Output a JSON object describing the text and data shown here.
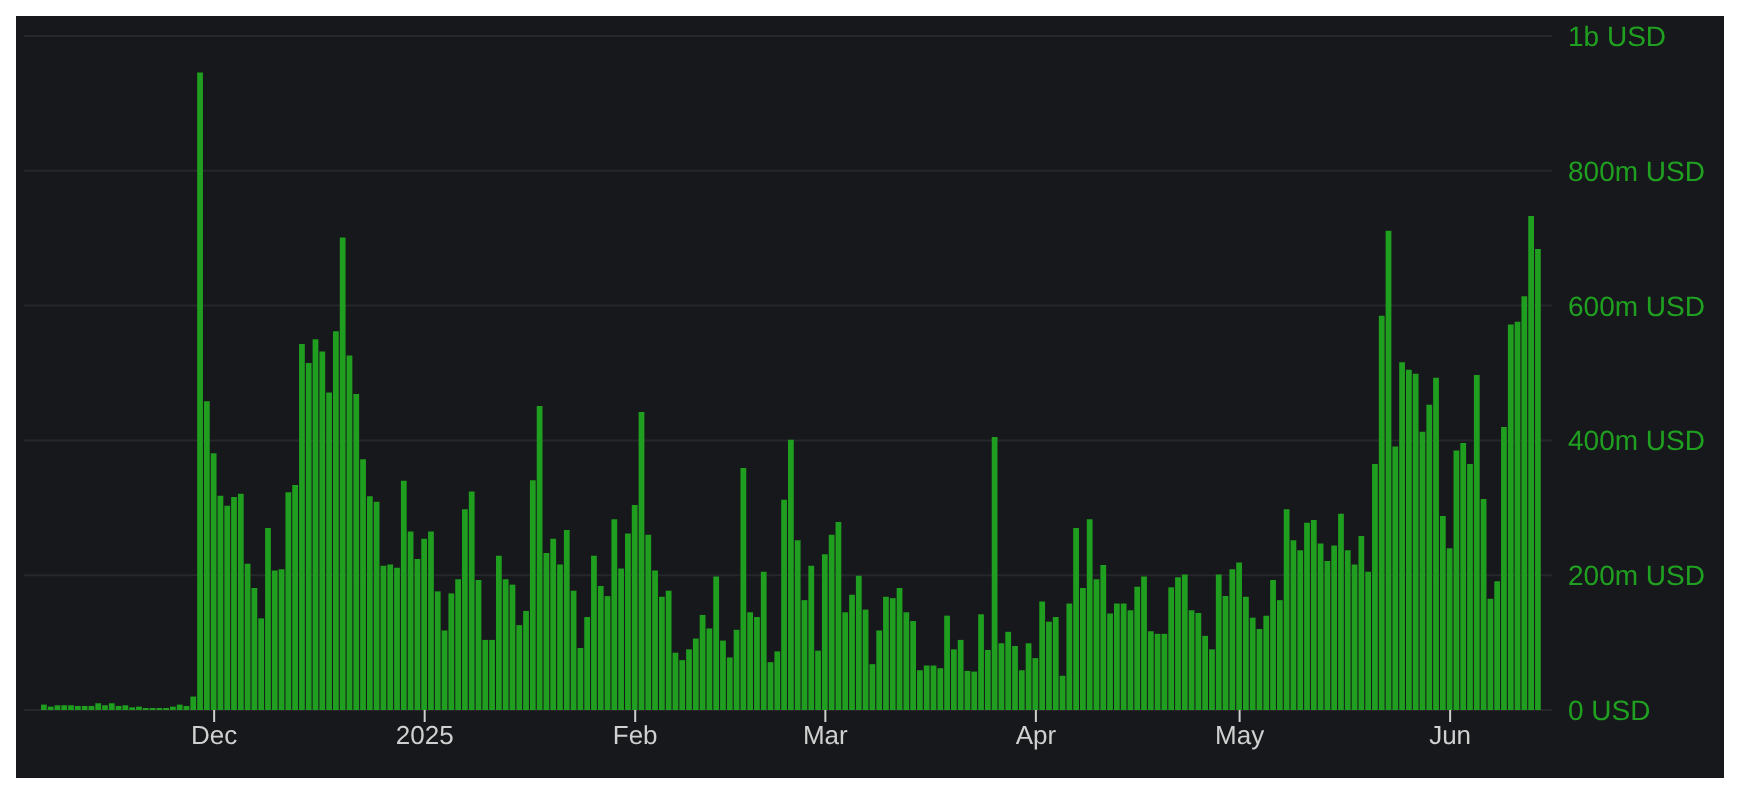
{
  "chart_data": {
    "type": "bar",
    "color": "#1f9e1f",
    "grid": "y",
    "x": [
      "2024-11-06",
      "2024-11-07",
      "2024-11-08",
      "2024-11-09",
      "2024-11-10",
      "2024-11-11",
      "2024-11-12",
      "2024-11-13",
      "2024-11-14",
      "2024-11-15",
      "2024-11-16",
      "2024-11-17",
      "2024-11-18",
      "2024-11-19",
      "2024-11-20",
      "2024-11-21",
      "2024-11-22",
      "2024-11-23",
      "2024-11-24",
      "2024-11-25",
      "2024-11-26",
      "2024-11-27",
      "2024-11-28",
      "2024-11-29",
      "2024-11-30",
      "2024-12-01",
      "2024-12-02",
      "2024-12-03",
      "2024-12-04",
      "2024-12-05",
      "2024-12-06",
      "2024-12-07",
      "2024-12-08",
      "2024-12-09",
      "2024-12-10",
      "2024-12-11",
      "2024-12-12",
      "2024-12-13",
      "2024-12-14",
      "2024-12-15",
      "2024-12-16",
      "2024-12-17",
      "2024-12-18",
      "2024-12-19",
      "2024-12-20",
      "2024-12-21",
      "2024-12-22",
      "2024-12-23",
      "2024-12-24",
      "2024-12-25",
      "2024-12-26",
      "2024-12-27",
      "2024-12-28",
      "2024-12-29",
      "2024-12-30",
      "2024-12-31",
      "2025-01-01",
      "2025-01-02",
      "2025-01-03",
      "2025-01-04",
      "2025-01-05",
      "2025-01-06",
      "2025-01-07",
      "2025-01-08",
      "2025-01-09",
      "2025-01-10",
      "2025-01-11",
      "2025-01-12",
      "2025-01-13",
      "2025-01-14",
      "2025-01-15",
      "2025-01-16",
      "2025-01-17",
      "2025-01-18",
      "2025-01-19",
      "2025-01-20",
      "2025-01-21",
      "2025-01-22",
      "2025-01-23",
      "2025-01-24",
      "2025-01-25",
      "2025-01-26",
      "2025-01-27",
      "2025-01-28",
      "2025-01-29",
      "2025-01-30",
      "2025-01-31",
      "2025-02-01",
      "2025-02-02",
      "2025-02-03",
      "2025-02-04",
      "2025-02-05",
      "2025-02-06",
      "2025-02-07",
      "2025-02-08",
      "2025-02-09",
      "2025-02-10",
      "2025-02-11",
      "2025-02-12",
      "2025-02-13",
      "2025-02-14",
      "2025-02-15",
      "2025-02-16",
      "2025-02-17",
      "2025-02-18",
      "2025-02-19",
      "2025-02-20",
      "2025-02-21",
      "2025-02-22",
      "2025-02-23",
      "2025-02-24",
      "2025-02-25",
      "2025-02-26",
      "2025-02-27",
      "2025-02-28",
      "2025-03-01",
      "2025-03-02",
      "2025-03-03",
      "2025-03-04",
      "2025-03-05",
      "2025-03-06",
      "2025-03-07",
      "2025-03-08",
      "2025-03-09",
      "2025-03-10",
      "2025-03-11",
      "2025-03-12",
      "2025-03-13",
      "2025-03-14",
      "2025-03-15",
      "2025-03-16",
      "2025-03-17",
      "2025-03-18",
      "2025-03-19",
      "2025-03-20",
      "2025-03-21",
      "2025-03-22",
      "2025-03-23",
      "2025-03-24",
      "2025-03-25",
      "2025-03-26",
      "2025-03-27",
      "2025-03-28",
      "2025-03-29",
      "2025-03-30",
      "2025-03-31",
      "2025-04-01",
      "2025-04-02",
      "2025-04-03",
      "2025-04-04",
      "2025-04-05",
      "2025-04-06",
      "2025-04-07",
      "2025-04-08",
      "2025-04-09",
      "2025-04-10",
      "2025-04-11",
      "2025-04-12",
      "2025-04-13",
      "2025-04-14",
      "2025-04-15",
      "2025-04-16",
      "2025-04-17",
      "2025-04-18",
      "2025-04-19",
      "2025-04-20",
      "2025-04-21",
      "2025-04-22",
      "2025-04-23",
      "2025-04-24",
      "2025-04-25",
      "2025-04-26",
      "2025-04-27",
      "2025-04-28",
      "2025-04-29",
      "2025-04-30",
      "2025-05-01",
      "2025-05-02",
      "2025-05-03",
      "2025-05-04",
      "2025-05-05",
      "2025-05-06",
      "2025-05-07",
      "2025-05-08",
      "2025-05-09",
      "2025-05-10",
      "2025-05-11",
      "2025-05-12",
      "2025-05-13",
      "2025-05-14",
      "2025-05-15",
      "2025-05-16",
      "2025-05-17",
      "2025-05-18",
      "2025-05-19",
      "2025-05-20",
      "2025-05-21",
      "2025-05-22",
      "2025-05-23",
      "2025-05-24",
      "2025-05-25",
      "2025-05-26",
      "2025-05-27",
      "2025-05-28",
      "2025-05-29",
      "2025-05-30",
      "2025-05-31",
      "2025-06-01",
      "2025-06-02",
      "2025-06-03",
      "2025-06-04",
      "2025-06-05",
      "2025-06-06",
      "2025-06-07",
      "2025-06-08",
      "2025-06-09",
      "2025-06-10",
      "2025-06-11",
      "2025-06-12",
      "2025-06-13",
      "2025-06-14"
    ],
    "values": [
      8000000.0,
      5000000.0,
      7000000.0,
      7000000.0,
      7000000.0,
      6000000.0,
      6000000.0,
      6000000.0,
      10000000.0,
      7000000.0,
      10000000.0,
      6000000.0,
      7000000.0,
      4000000.0,
      5000000.0,
      3000000.0,
      3000000.0,
      3000000.0,
      3000000.0,
      5000000.0,
      8000000.0,
      6000000.0,
      20000000.0,
      946000000.0,
      458000000.0,
      381000000.0,
      318000000.0,
      303000000.0,
      316000000.0,
      321000000.0,
      217000000.0,
      181000000.0,
      136000000.0,
      270000000.0,
      207000000.0,
      209000000.0,
      323000000.0,
      334000000.0,
      543000000.0,
      515000000.0,
      550000000.0,
      532000000.0,
      471000000.0,
      562000000.0,
      701000000.0,
      526000000.0,
      469000000.0,
      372000000.0,
      317000000.0,
      309000000.0,
      214000000.0,
      216000000.0,
      211000000.0,
      340000000.0,
      265000000.0,
      224000000.0,
      254000000.0,
      265000000.0,
      176000000.0,
      118000000.0,
      173000000.0,
      194000000.0,
      298000000.0,
      324000000.0,
      193000000.0,
      104000000.0,
      104000000.0,
      229000000.0,
      194000000.0,
      186000000.0,
      126000000.0,
      147000000.0,
      341000000.0,
      451000000.0,
      233000000.0,
      254000000.0,
      216000000.0,
      267000000.0,
      177000000.0,
      92000000.0,
      138000000.0,
      229000000.0,
      184000000.0,
      169000000.0,
      283000000.0,
      210000000.0,
      262000000.0,
      304000000.0,
      442000000.0,
      260000000.0,
      207000000.0,
      168000000.0,
      177000000.0,
      85000000.0,
      74000000.0,
      90000000.0,
      106000000.0,
      141000000.0,
      121000000.0,
      198000000.0,
      103000000.0,
      78000000.0,
      119000000.0,
      359000000.0,
      145000000.0,
      138000000.0,
      205000000.0,
      71000000.0,
      87000000.0,
      312000000.0,
      401000000.0,
      252000000.0,
      163000000.0,
      214000000.0,
      88000000.0,
      231000000.0,
      260000000.0,
      279000000.0,
      145000000.0,
      171000000.0,
      199000000.0,
      149000000.0,
      68000000.0,
      118000000.0,
      168000000.0,
      166000000.0,
      181000000.0,
      145000000.0,
      132000000.0,
      59000000.0,
      66000000.0,
      66000000.0,
      62000000.0,
      140000000.0,
      90000000.0,
      104000000.0,
      58000000.0,
      57000000.0,
      142000000.0,
      89000000.0,
      405000000.0,
      99000000.0,
      116000000.0,
      95000000.0,
      59000000.0,
      99000000.0,
      77000000.0,
      161000000.0,
      131000000.0,
      138000000.0,
      51000000.0,
      158000000.0,
      270000000.0,
      181000000.0,
      283000000.0,
      194000000.0,
      215000000.0,
      143000000.0,
      158000000.0,
      158000000.0,
      148000000.0,
      183000000.0,
      198000000.0,
      117000000.0,
      113000000.0,
      113000000.0,
      182000000.0,
      197000000.0,
      201000000.0,
      148000000.0,
      144000000.0,
      110000000.0,
      90000000.0,
      201000000.0,
      169000000.0,
      209000000.0,
      219000000.0,
      168000000.0,
      137000000.0,
      120000000.0,
      140000000.0,
      193000000.0,
      163000000.0,
      298000000.0,
      252000000.0,
      237000000.0,
      278000000.0,
      282000000.0,
      247000000.0,
      221000000.0,
      244000000.0,
      291000000.0,
      237000000.0,
      216000000.0,
      258000000.0,
      205000000.0,
      365000000.0,
      585000000.0,
      711000000.0,
      391000000.0,
      516000000.0,
      505000000.0,
      499000000.0,
      413000000.0,
      453000000.0,
      493000000.0,
      288000000.0,
      240000000.0,
      385000000.0,
      396000000.0,
      365000000.0,
      497000000.0,
      313000000.0,
      165000000.0,
      191000000.0,
      420000000.0,
      572000000.0,
      576000000.0,
      614000000.0,
      733000000.0,
      684000000.0
    ],
    "xlim": [
      "2024-11-03",
      "2025-06-16"
    ],
    "xticks": [
      {
        "value": "2024-12-01",
        "label": "Dec"
      },
      {
        "value": "2025-01-01",
        "label": "2025"
      },
      {
        "value": "2025-02-01",
        "label": "Feb"
      },
      {
        "value": "2025-03-01",
        "label": "Mar"
      },
      {
        "value": "2025-04-01",
        "label": "Apr"
      },
      {
        "value": "2025-05-01",
        "label": "May"
      },
      {
        "value": "2025-06-01",
        "label": "Jun"
      }
    ],
    "ylim": [
      0,
      1000000000
    ],
    "yticks": [
      {
        "value": 0,
        "label": "0 USD"
      },
      {
        "value": 200000000,
        "label": "200m USD"
      },
      {
        "value": 400000000,
        "label": "400m USD"
      },
      {
        "value": 600000000,
        "label": "600m USD"
      },
      {
        "value": 800000000,
        "label": "800m USD"
      },
      {
        "value": 1000000000,
        "label": "1b USD"
      }
    ]
  }
}
